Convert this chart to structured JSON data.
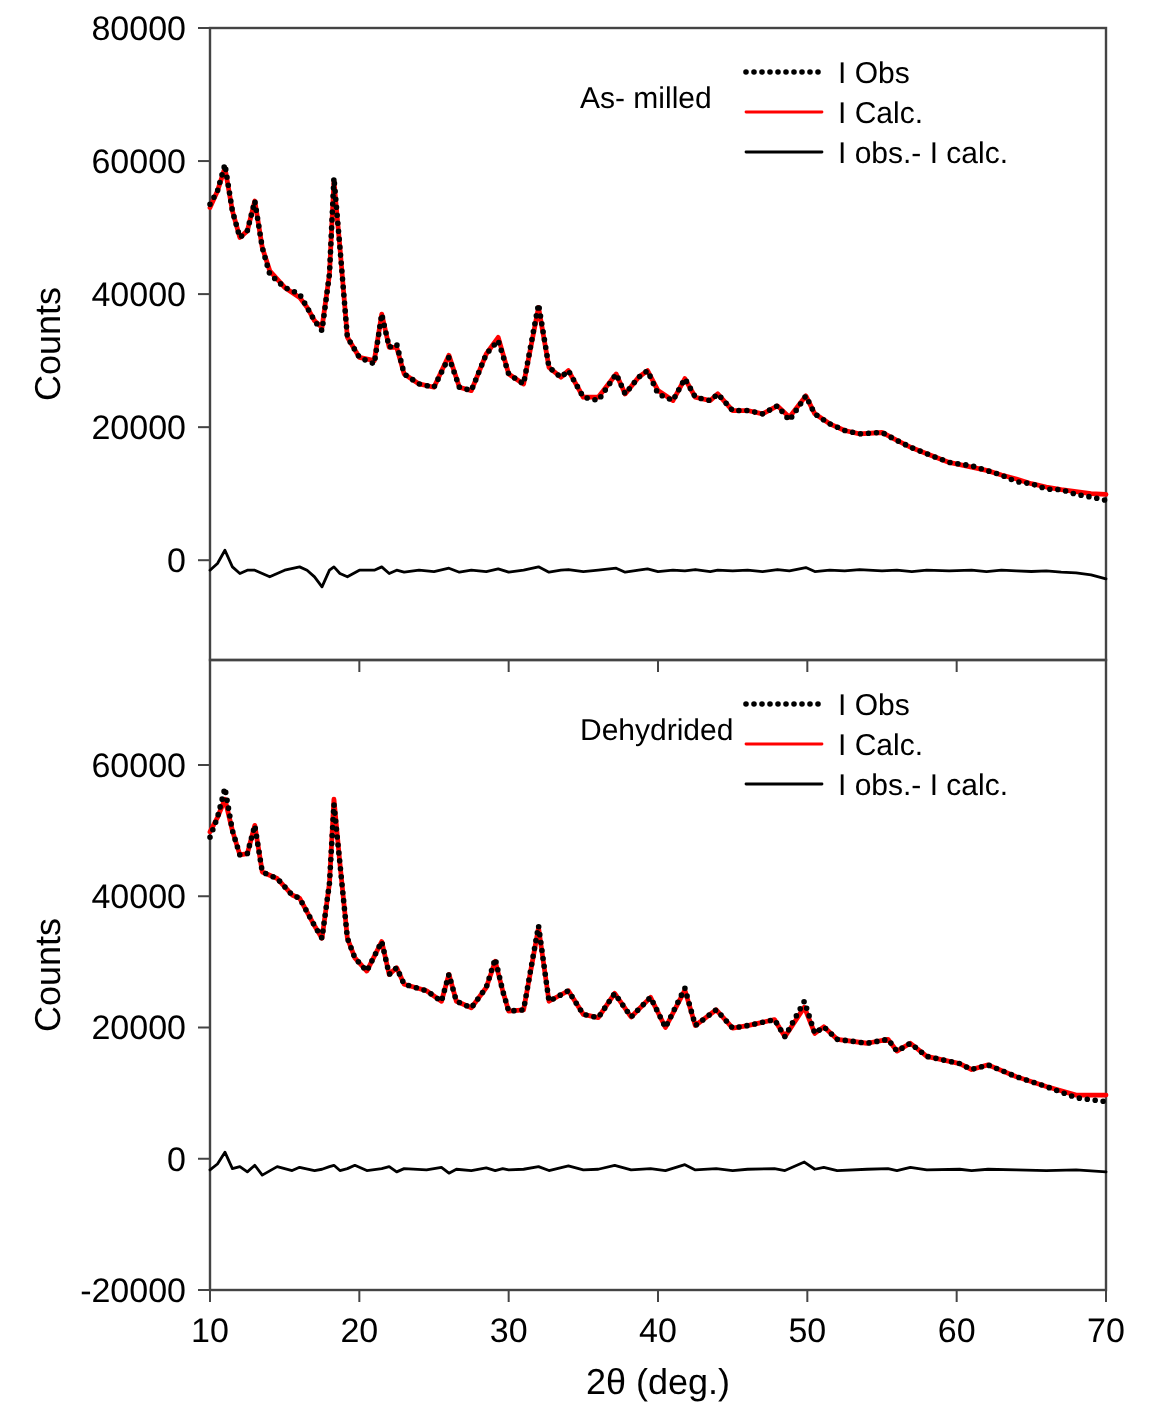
{
  "chart_data": [
    {
      "type": "line",
      "ylabel": "Counts",
      "annotations": [
        "As- milled"
      ],
      "legend": "top right",
      "tick_labels": "y",
      "xlim": [
        10,
        70
      ],
      "xticks": [
        10,
        20,
        30,
        40,
        50,
        60,
        70
      ],
      "ylim": [
        -15000,
        80000
      ],
      "yticks": [
        0,
        20000,
        40000,
        60000,
        80000
      ],
      "x": [
        10,
        10.5,
        11,
        11.5,
        12,
        12.5,
        13,
        13.5,
        14,
        15,
        16,
        16.5,
        17,
        17.5,
        18,
        18.3,
        18.7,
        19.2,
        20,
        21,
        21.5,
        22,
        22.5,
        23,
        24,
        25,
        26,
        26.7,
        27.5,
        28.5,
        29.3,
        30,
        31,
        32,
        32.7,
        33.5,
        34,
        35,
        36,
        37.2,
        37.8,
        38.7,
        39.3,
        40,
        41,
        41.8,
        42.5,
        43.5,
        44,
        45,
        46,
        47,
        48,
        48.8,
        49.9,
        50.5,
        51.5,
        52.5,
        53.5,
        55,
        56,
        57,
        58,
        59.5,
        61,
        62,
        63,
        64,
        65,
        66,
        67,
        68,
        69,
        70
      ],
      "series": [
        {
          "name": "I Obs",
          "color": "#000000",
          "line_style": "dotted",
          "values": [
            53500,
            55500,
            59500,
            52500,
            48500,
            49500,
            54000,
            47000,
            43000,
            41000,
            40000,
            38000,
            36000,
            34500,
            43000,
            57500,
            47000,
            33500,
            30500,
            29500,
            37000,
            32000,
            32500,
            28000,
            26500,
            26000,
            30500,
            26000,
            25500,
            31000,
            33000,
            28000,
            26500,
            38500,
            29000,
            27500,
            28500,
            24500,
            24000,
            28000,
            25000,
            27500,
            28500,
            25000,
            24000,
            27300,
            24500,
            24000,
            25000,
            22500,
            22500,
            22000,
            23200,
            21000,
            24700,
            22000,
            20500,
            19500,
            19000,
            19200,
            18000,
            16900,
            16000,
            14700,
            14200,
            13500,
            12800,
            11800,
            11500,
            10700,
            10600,
            9900,
            9500,
            9000
          ]
        },
        {
          "name": "I Calc.",
          "color": "#ff0000",
          "line_style": "solid",
          "values": [
            53000,
            55500,
            59000,
            52500,
            48500,
            49500,
            54000,
            47000,
            43500,
            41000,
            39500,
            38000,
            36000,
            35000,
            43000,
            57000,
            47000,
            33500,
            30500,
            30000,
            37000,
            32000,
            32000,
            28000,
            26500,
            26000,
            30800,
            26000,
            25500,
            31000,
            33500,
            28000,
            26500,
            38000,
            29000,
            27500,
            28500,
            24500,
            24500,
            28000,
            25000,
            27500,
            28500,
            25500,
            24000,
            27300,
            24500,
            24000,
            25000,
            22500,
            22500,
            22000,
            23200,
            21500,
            24700,
            22000,
            20500,
            19500,
            19000,
            19200,
            18000,
            16900,
            16000,
            14700,
            14000,
            13500,
            12800,
            12200,
            11500,
            11000,
            10600,
            10300,
            10000,
            9900
          ]
        },
        {
          "name": "I obs.- I calc.",
          "color": "#000000",
          "line_style": "solid",
          "values": [
            -1500,
            -500,
            1500,
            -1000,
            -2000,
            -1500,
            -1500,
            -2000,
            -2500,
            -1500,
            -1000,
            -1500,
            -2500,
            -4000,
            -1500,
            -1000,
            -2000,
            -2500,
            -1500,
            -1500,
            -1000,
            -2000,
            -1500,
            -1800,
            -1500,
            -1700,
            -1200,
            -1800,
            -1500,
            -1700,
            -1300,
            -1800,
            -1500,
            -1000,
            -1800,
            -1500,
            -1400,
            -1700,
            -1500,
            -1200,
            -1800,
            -1500,
            -1300,
            -1700,
            -1500,
            -1600,
            -1400,
            -1700,
            -1500,
            -1600,
            -1500,
            -1700,
            -1400,
            -1600,
            -1100,
            -1700,
            -1500,
            -1600,
            -1400,
            -1600,
            -1500,
            -1700,
            -1500,
            -1600,
            -1500,
            -1700,
            -1500,
            -1600,
            -1700,
            -1600,
            -1800,
            -1900,
            -2200,
            -2800
          ]
        }
      ]
    },
    {
      "type": "line",
      "xlabel": "2θ (deg.)",
      "ylabel": "Counts",
      "annotations": [
        "Dehydrided"
      ],
      "legend": "top right",
      "xlim": [
        10,
        70
      ],
      "xticks": [
        10,
        20,
        30,
        40,
        50,
        60,
        70
      ],
      "ylim": [
        -20000,
        76000
      ],
      "yticks": [
        -20000,
        0,
        20000,
        40000,
        60000
      ],
      "x": [
        10,
        10.5,
        11,
        11.5,
        12,
        12.5,
        13,
        13.5,
        14.5,
        15.5,
        16,
        17,
        17.5,
        18,
        18.3,
        18.7,
        19.2,
        19.7,
        20.5,
        21.5,
        22,
        22.5,
        23,
        24.5,
        25.5,
        26,
        26.5,
        27.5,
        28.5,
        29.1,
        29.6,
        30,
        31,
        32,
        32.7,
        34,
        35,
        36,
        37.1,
        38.2,
        39.5,
        40.5,
        41.8,
        42.5,
        43.9,
        45,
        46,
        47.8,
        48.5,
        49.8,
        50.5,
        51.1,
        52,
        54,
        55.4,
        56,
        56.9,
        58,
        60.2,
        61,
        62.1,
        64,
        66,
        68,
        70
      ],
      "series": [
        {
          "name": "I Obs",
          "color": "#000000",
          "line_style": "dotted",
          "values": [
            49000,
            52000,
            56500,
            50000,
            46300,
            46500,
            50800,
            43700,
            42700,
            40200,
            39700,
            35500,
            33600,
            42000,
            54000,
            45000,
            33600,
            30600,
            28600,
            33100,
            28100,
            29100,
            26600,
            25600,
            24000,
            28100,
            24000,
            23000,
            26100,
            30500,
            25600,
            22500,
            22700,
            35500,
            24000,
            25600,
            22000,
            21500,
            25200,
            21600,
            24600,
            20000,
            26000,
            20300,
            22700,
            19900,
            20300,
            21200,
            18600,
            24000,
            19100,
            20100,
            18200,
            17600,
            18200,
            16400,
            17600,
            15600,
            14500,
            13600,
            14300,
            12500,
            11000,
            9300,
            8700
          ]
        },
        {
          "name": "I Calc.",
          "color": "#ff0000",
          "line_style": "solid",
          "values": [
            49800,
            52000,
            54800,
            50000,
            46300,
            46500,
            50800,
            43700,
            42700,
            40200,
            39700,
            35500,
            33600,
            42000,
            54800,
            45000,
            33600,
            30600,
            28600,
            33100,
            28100,
            29100,
            26600,
            25600,
            24000,
            28100,
            24000,
            23000,
            26100,
            30100,
            25600,
            22500,
            22700,
            35200,
            24000,
            25600,
            22000,
            21500,
            25200,
            21600,
            24600,
            20000,
            25700,
            20300,
            22700,
            19900,
            20300,
            21200,
            18600,
            23100,
            19100,
            20100,
            18200,
            17600,
            18200,
            16400,
            17600,
            15600,
            14500,
            13600,
            14300,
            12500,
            11000,
            9700,
            9700
          ]
        },
        {
          "name": "I obs.- I calc.",
          "color": "#000000",
          "line_style": "solid",
          "values": [
            -1700,
            -800,
            1000,
            -1500,
            -1200,
            -2000,
            -1000,
            -2500,
            -1200,
            -1800,
            -1300,
            -1800,
            -1600,
            -1200,
            -1000,
            -1800,
            -1500,
            -1000,
            -1800,
            -1500,
            -1200,
            -2000,
            -1500,
            -1700,
            -1300,
            -2200,
            -1600,
            -1800,
            -1400,
            -1800,
            -1500,
            -1700,
            -1600,
            -1200,
            -1800,
            -1100,
            -1700,
            -1600,
            -1000,
            -1700,
            -1500,
            -1800,
            -900,
            -1700,
            -1500,
            -1800,
            -1600,
            -1500,
            -1800,
            -500,
            -1600,
            -1300,
            -1800,
            -1600,
            -1500,
            -1800,
            -1300,
            -1700,
            -1600,
            -1800,
            -1600,
            -1700,
            -1800,
            -1700,
            -2000
          ]
        }
      ]
    }
  ]
}
